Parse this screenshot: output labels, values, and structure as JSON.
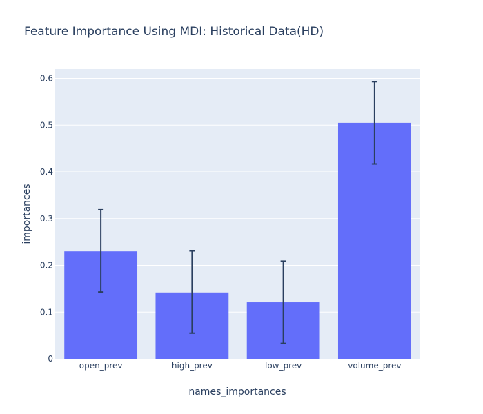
{
  "chart_data": {
    "type": "bar",
    "title": "Feature Importance Using MDI: Historical Data(HD)",
    "xlabel": "names_importances",
    "ylabel": "importances",
    "categories": [
      "open_prev",
      "high_prev",
      "low_prev",
      "volume_prev"
    ],
    "values": [
      0.23,
      0.142,
      0.121,
      0.505
    ],
    "error_minus": [
      0.087,
      0.087,
      0.088,
      0.088
    ],
    "error_plus": [
      0.089,
      0.089,
      0.088,
      0.088
    ],
    "ylim": [
      0,
      0.62
    ],
    "yticks": [
      "0",
      "0.1",
      "0.2",
      "0.3",
      "0.4",
      "0.5",
      "0.6"
    ],
    "ytick_values": [
      0,
      0.1,
      0.2,
      0.3,
      0.4,
      0.5,
      0.6
    ],
    "grid": true,
    "colors": {
      "bar": "#636efa",
      "plot_bg": "#e5ecf6",
      "error_bar": "#2a3f5f",
      "grid": "#ffffff",
      "text": "#2a3f5f"
    }
  }
}
